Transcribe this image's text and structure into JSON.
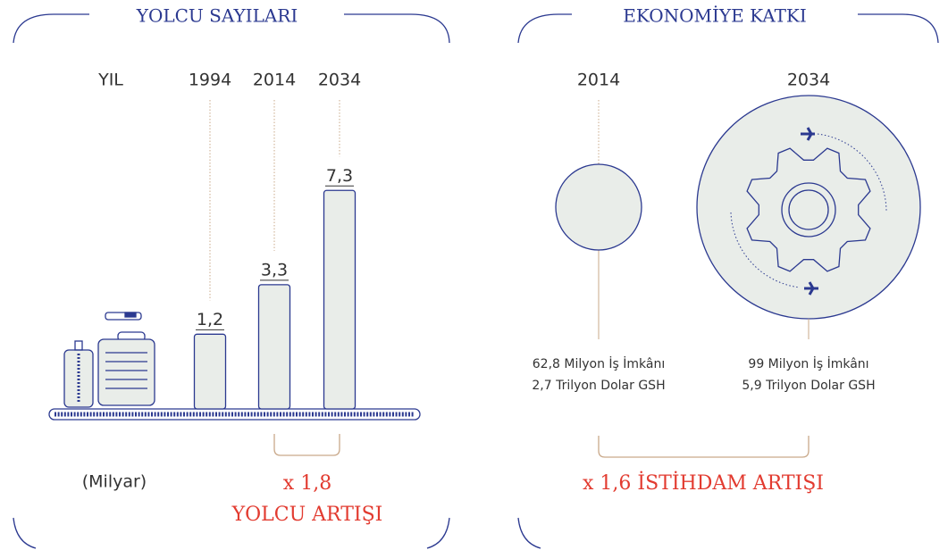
{
  "chart_data": {
    "type": "bar",
    "title": "YOLCU SAYILARI",
    "category_label": "YIL",
    "unit_label": "(Milyar)",
    "categories": [
      "1994",
      "2014",
      "2034"
    ],
    "values": [
      1.2,
      3.3,
      7.3
    ],
    "value_labels": [
      "1,2",
      "3,3",
      "7,3"
    ],
    "color": "#e9ede9",
    "multiplier": "x 1,8",
    "annotation": "YOLCU ARTIŞI"
  },
  "economy": {
    "title": "EKONOMİYE KATKI",
    "columns": [
      {
        "year": "2014",
        "lines": [
          "62,8 Milyon İş İmkânı",
          "2,7 Trilyon Dolar GSH"
        ]
      },
      {
        "year": "2034",
        "lines": [
          "99 Milyon İş İmkânı",
          "5,9 Trilyon Dolar GSH"
        ]
      }
    ],
    "annotation": "x 1,6 İSTİHDAM ARTIŞI"
  }
}
